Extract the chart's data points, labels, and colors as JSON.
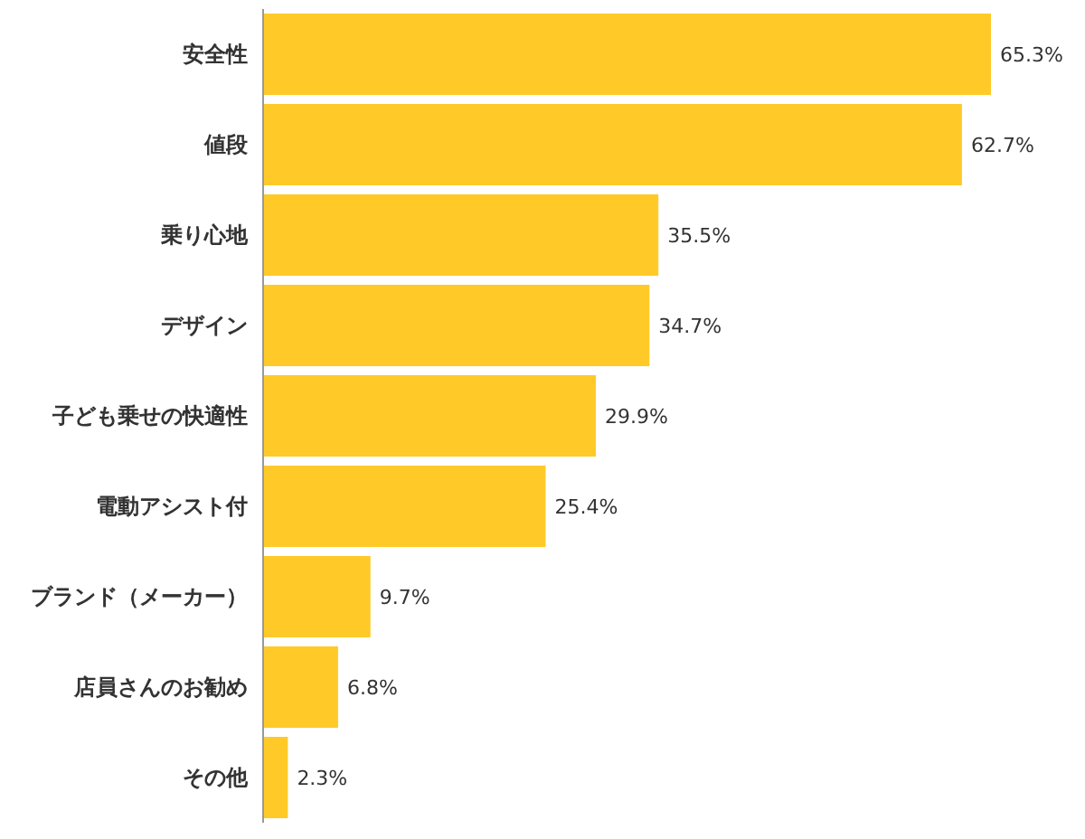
{
  "chart_data": {
    "type": "bar",
    "orientation": "horizontal",
    "categories": [
      "安全性",
      "値段",
      "乗り心地",
      "デザイン",
      "子ども乗せの快適性",
      "電動アシスト付",
      "ブランド（メーカー）",
      "店員さんのお勧め",
      "その他"
    ],
    "values": [
      65.3,
      62.7,
      35.5,
      34.7,
      29.9,
      25.4,
      9.7,
      6.8,
      2.3
    ],
    "value_labels": [
      "65.3%",
      "62.7%",
      "35.5%",
      "34.7%",
      "29.9%",
      "25.4%",
      "9.7%",
      "6.8%",
      "2.3%"
    ],
    "color": "#ffca28"
  }
}
